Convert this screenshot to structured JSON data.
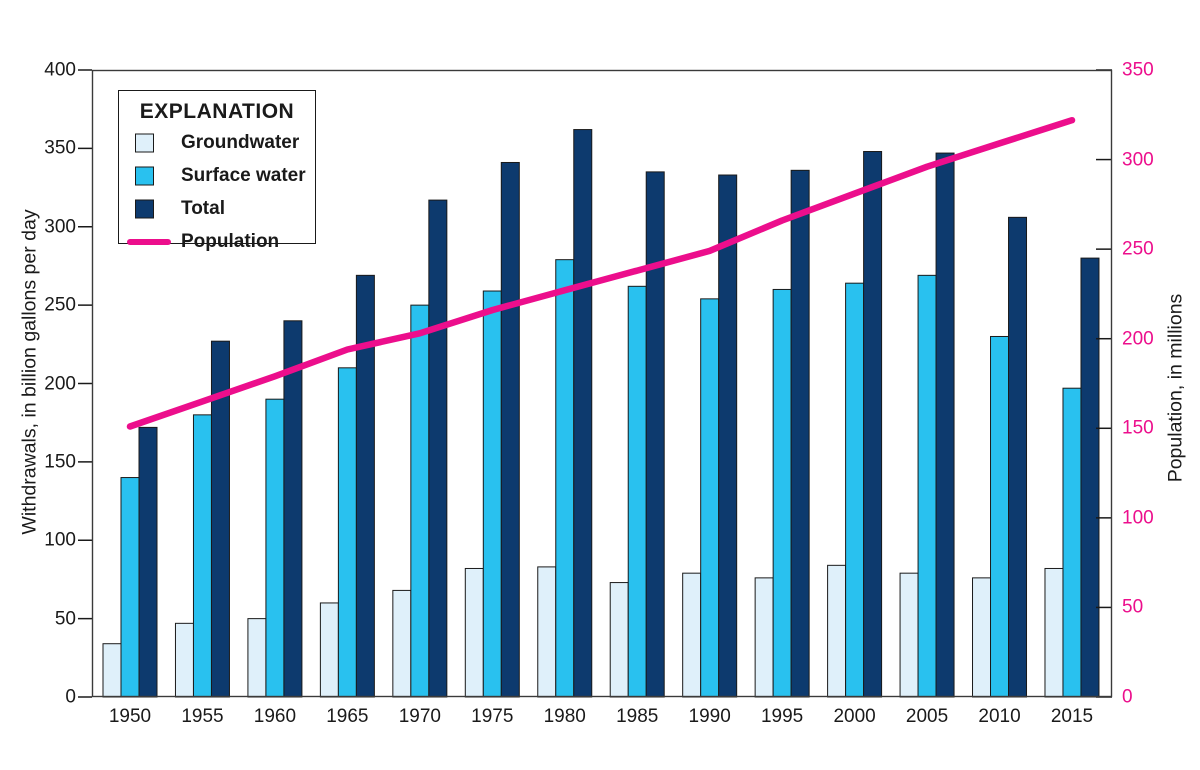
{
  "chart_data": {
    "type": "bar",
    "subtype": "grouped-bars-with-line-overlay",
    "categories": [
      "1950",
      "1955",
      "1960",
      "1965",
      "1970",
      "1975",
      "1980",
      "1985",
      "1990",
      "1995",
      "2000",
      "2005",
      "2010",
      "2015"
    ],
    "series": [
      {
        "name": "Groundwater",
        "kind": "bar",
        "axis": "left",
        "color": "#DFF0FA",
        "values": [
          34,
          47,
          50,
          60,
          68,
          82,
          83,
          73,
          79,
          76,
          84,
          79,
          76,
          82
        ]
      },
      {
        "name": "Surface water",
        "kind": "bar",
        "axis": "left",
        "color": "#29C1EF",
        "values": [
          140,
          180,
          190,
          210,
          250,
          259,
          279,
          262,
          254,
          260,
          264,
          269,
          230,
          197
        ]
      },
      {
        "name": "Total",
        "kind": "bar",
        "axis": "left",
        "color": "#0D3A6E",
        "values": [
          172,
          227,
          240,
          269,
          317,
          341,
          362,
          335,
          333,
          336,
          348,
          347,
          306,
          280
        ]
      },
      {
        "name": "Population",
        "kind": "line",
        "axis": "right",
        "color": "#EC0E8C",
        "values": [
          151,
          165,
          179,
          194,
          203,
          216,
          227,
          238,
          249,
          266,
          281,
          296,
          309,
          322
        ]
      }
    ],
    "left_axis": {
      "label": "Withdrawals, in billion gallons per day",
      "min": 0,
      "max": 400,
      "step": 50,
      "ticks": [
        0,
        50,
        100,
        150,
        200,
        250,
        300,
        350,
        400
      ],
      "color": "#1a1a1a"
    },
    "right_axis": {
      "label": "Population, in millions",
      "min": 0,
      "max": 350,
      "step": 50,
      "ticks": [
        0,
        50,
        100,
        150,
        200,
        250,
        300,
        350
      ],
      "color": "#EC0E8C"
    },
    "legend_title": "EXPLANATION",
    "grid": "off",
    "legend_position": "top-left-inside",
    "bar_outline_color": "#1a1a1a",
    "plot_border_color": "#3a3a3a"
  }
}
